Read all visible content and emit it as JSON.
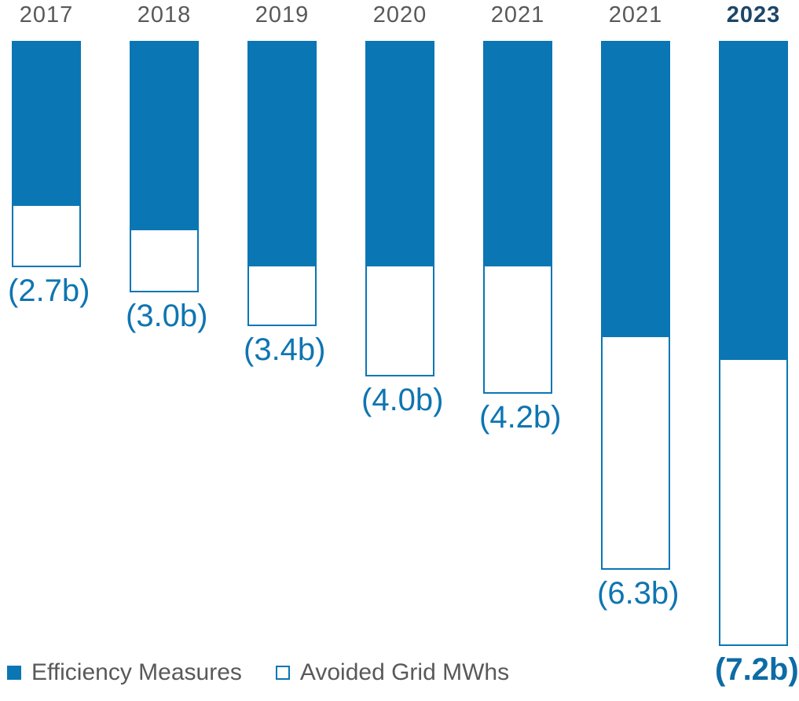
{
  "chart_data": {
    "type": "bar",
    "stacked": true,
    "orientation": "vertical-growing-downward",
    "title": "",
    "xlabel": "",
    "ylabel": "",
    "grid": false,
    "unit": "billions of MWhs",
    "categories": [
      "2017",
      "2018",
      "2019",
      "2020",
      "2021",
      "2021",
      "2023"
    ],
    "series": [
      {
        "name": "Efficiency Measures",
        "style": "filled",
        "values": [
          1.95,
          2.24,
          2.67,
          2.67,
          2.67,
          3.51,
          3.78
        ]
      },
      {
        "name": "Avoided Grid MWhs",
        "style": "outlined",
        "values": [
          0.75,
          0.76,
          0.73,
          1.33,
          1.53,
          2.79,
          3.42
        ]
      }
    ],
    "totals": [
      2.7,
      3.0,
      3.4,
      4.0,
      4.2,
      6.3,
      7.2
    ],
    "total_labels": [
      "(2.7b)",
      "(3.0b)",
      "(3.4b)",
      "(4.0b)",
      "(4.2b)",
      "(6.3b)",
      "(7.2b)"
    ],
    "highlight_column_index": 6,
    "legend_position": "bottom-left"
  },
  "legend": {
    "items": [
      {
        "label": "Efficiency Measures",
        "swatch": "filled"
      },
      {
        "label": "Avoided Grid MWhs",
        "swatch": "outlined"
      }
    ]
  },
  "colors": {
    "bar_blue": "#0a76b4",
    "year_gray": "#58595b",
    "highlight_navy": "#1d4668",
    "value_label_blue": "#0e75b1",
    "background": "#ffffff"
  }
}
